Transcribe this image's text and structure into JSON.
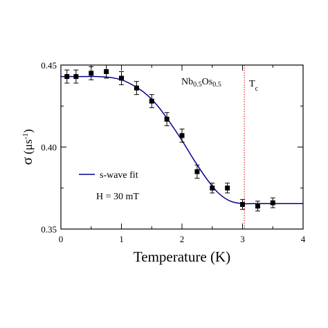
{
  "chart_data": {
    "type": "scatter",
    "xlabel": "Temperature (K)",
    "ylabel": {
      "symbol": "σ",
      "open": " (μs",
      "exp": "-1",
      "close": ")"
    },
    "xlim": [
      0,
      4
    ],
    "ylim": [
      0.35,
      0.45
    ],
    "x_ticks": [
      "0",
      "1",
      "2",
      "3",
      "4"
    ],
    "y_ticks": [
      "0.35",
      "0.40",
      "0.45"
    ],
    "grid": false,
    "series": [
      {
        "kind": "points_with_errorbars",
        "marker": "square",
        "color": "#000000",
        "x": [
          0.1,
          0.25,
          0.5,
          0.75,
          1.0,
          1.25,
          1.5,
          1.75,
          2.0,
          2.25,
          2.5,
          2.75,
          3.0,
          3.25,
          3.5
        ],
        "y": [
          0.443,
          0.443,
          0.445,
          0.446,
          0.442,
          0.436,
          0.428,
          0.417,
          0.407,
          0.385,
          0.375,
          0.375,
          0.365,
          0.364,
          0.366
        ],
        "err": [
          0.004,
          0.004,
          0.004,
          0.004,
          0.004,
          0.004,
          0.004,
          0.004,
          0.004,
          0.004,
          0.003,
          0.003,
          0.003,
          0.003,
          0.003
        ]
      },
      {
        "kind": "fit_line",
        "name": "s-wave fit",
        "color": "#00008b",
        "x": [
          0,
          0.2,
          0.4,
          0.6,
          0.8,
          1.0,
          1.2,
          1.4,
          1.6,
          1.8,
          2.0,
          2.2,
          2.4,
          2.6,
          2.8,
          3.0,
          3.2,
          3.6,
          4.0
        ],
        "y": [
          0.443,
          0.443,
          0.443,
          0.443,
          0.4425,
          0.441,
          0.4375,
          0.4325,
          0.425,
          0.415,
          0.404,
          0.392,
          0.381,
          0.372,
          0.367,
          0.3655,
          0.3655,
          0.3655,
          0.3655
        ]
      }
    ],
    "tc_line": {
      "x": 3.03,
      "color": "#cc0000",
      "style": "dotted"
    },
    "legend": {
      "position": "left-middle",
      "entries": [
        {
          "label": "s-wave fit",
          "color": "#00008b"
        }
      ]
    },
    "annotations": {
      "field": "H = 30 mT",
      "tc": {
        "main": "T",
        "sub": "c"
      },
      "compound": [
        {
          "text": "Nb",
          "sub": false
        },
        {
          "text": "0.5",
          "sub": true
        },
        {
          "text": "Os",
          "sub": false
        },
        {
          "text": "0.5",
          "sub": true
        }
      ]
    }
  }
}
